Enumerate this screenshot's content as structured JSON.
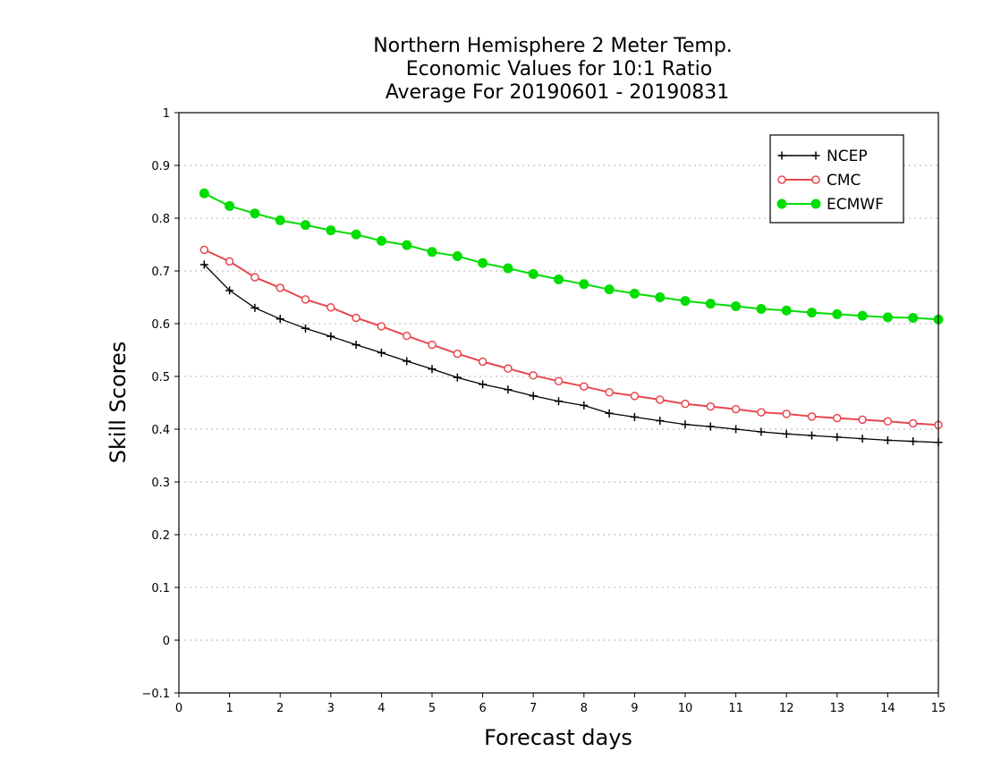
{
  "chart_data": {
    "type": "line",
    "title_lines": [
      "Northern Hemisphere 2 Meter Temp.",
      "Economic Values for 10:1 Ratio",
      "Average For 20190601 - 20190831"
    ],
    "xlabel": "Forecast days",
    "ylabel": "Skill Scores",
    "xlim": [
      0,
      15
    ],
    "ylim": [
      -0.1,
      1
    ],
    "xticks": [
      "0",
      "1",
      "2",
      "3",
      "4",
      "5",
      "6",
      "7",
      "8",
      "9",
      "10",
      "11",
      "12",
      "13",
      "14",
      "15"
    ],
    "yticks": [
      "−0.1",
      "0",
      "0.1",
      "0.2",
      "0.3",
      "0.4",
      "0.5",
      "0.6",
      "0.7",
      "0.8",
      "0.9",
      "1"
    ],
    "grid": "horizontal dotted",
    "legend_position": "top-right",
    "x": [
      0.5,
      1,
      1.5,
      2,
      2.5,
      3,
      3.5,
      4,
      4.5,
      5,
      5.5,
      6,
      6.5,
      7,
      7.5,
      8,
      8.5,
      9,
      9.5,
      10,
      10.5,
      11,
      11.5,
      12,
      12.5,
      13,
      13.5,
      14,
      14.5,
      15
    ],
    "series": [
      {
        "name": "NCEP",
        "color": "#000000",
        "marker": "plus",
        "values": [
          0.712,
          0.663,
          0.63,
          0.609,
          0.591,
          0.576,
          0.56,
          0.545,
          0.529,
          0.514,
          0.498,
          0.485,
          0.475,
          0.463,
          0.453,
          0.445,
          0.43,
          0.423,
          0.416,
          0.409,
          0.405,
          0.4,
          0.395,
          0.391,
          0.388,
          0.385,
          0.382,
          0.379,
          0.377,
          0.375
        ]
      },
      {
        "name": "CMC",
        "color": "#e8474f",
        "marker": "open-circle",
        "values": [
          0.74,
          0.718,
          0.688,
          0.668,
          0.646,
          0.631,
          0.611,
          0.595,
          0.577,
          0.56,
          0.543,
          0.528,
          0.515,
          0.502,
          0.491,
          0.481,
          0.47,
          0.463,
          0.456,
          0.448,
          0.443,
          0.438,
          0.432,
          0.429,
          0.424,
          0.421,
          0.418,
          0.415,
          0.411,
          0.408
        ]
      },
      {
        "name": "ECMWF",
        "color": "#00dd00",
        "marker": "filled-circle",
        "values": [
          0.847,
          0.823,
          0.809,
          0.796,
          0.787,
          0.777,
          0.769,
          0.757,
          0.749,
          0.736,
          0.728,
          0.715,
          0.705,
          0.694,
          0.684,
          0.675,
          0.665,
          0.657,
          0.65,
          0.643,
          0.638,
          0.633,
          0.628,
          0.625,
          0.621,
          0.618,
          0.615,
          0.612,
          0.611,
          0.608
        ]
      }
    ]
  }
}
